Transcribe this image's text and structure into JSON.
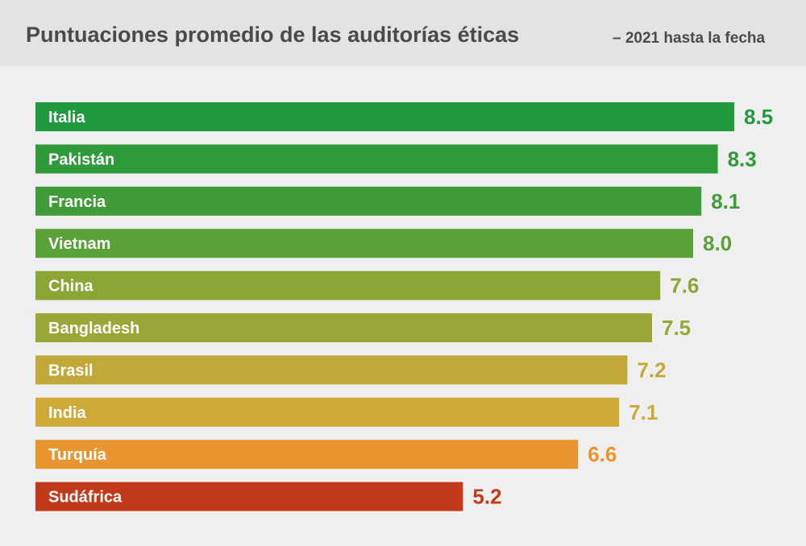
{
  "header": {
    "title": "Puntuaciones promedio de las auditorías éticas",
    "subtitle": "– 2021 hasta la fecha"
  },
  "chart_data": {
    "type": "bar",
    "orientation": "horizontal",
    "title": "Puntuaciones promedio de las auditorías éticas",
    "subtitle": "– 2021 hasta la fecha",
    "categories": [
      "Italia",
      "Pakistán",
      "Francia",
      "Vietnam",
      "China",
      "Bangladesh",
      "Brasil",
      "India",
      "Turquía",
      "Sudáfrica"
    ],
    "values": [
      8.5,
      8.3,
      8.1,
      8.0,
      7.6,
      7.5,
      7.2,
      7.1,
      6.6,
      5.2
    ],
    "value_labels": [
      "8.5",
      "8.3",
      "8.1",
      "8.0",
      "7.6",
      "7.5",
      "7.2",
      "7.1",
      "6.6",
      "5.2"
    ],
    "colors": [
      "#1f9a3c",
      "#2f9a3a",
      "#3f9c38",
      "#5aa138",
      "#8aa635",
      "#9aa635",
      "#c2a838",
      "#cdaa38",
      "#e8952f",
      "#c23a1a"
    ],
    "grid": false,
    "legend": "none"
  }
}
